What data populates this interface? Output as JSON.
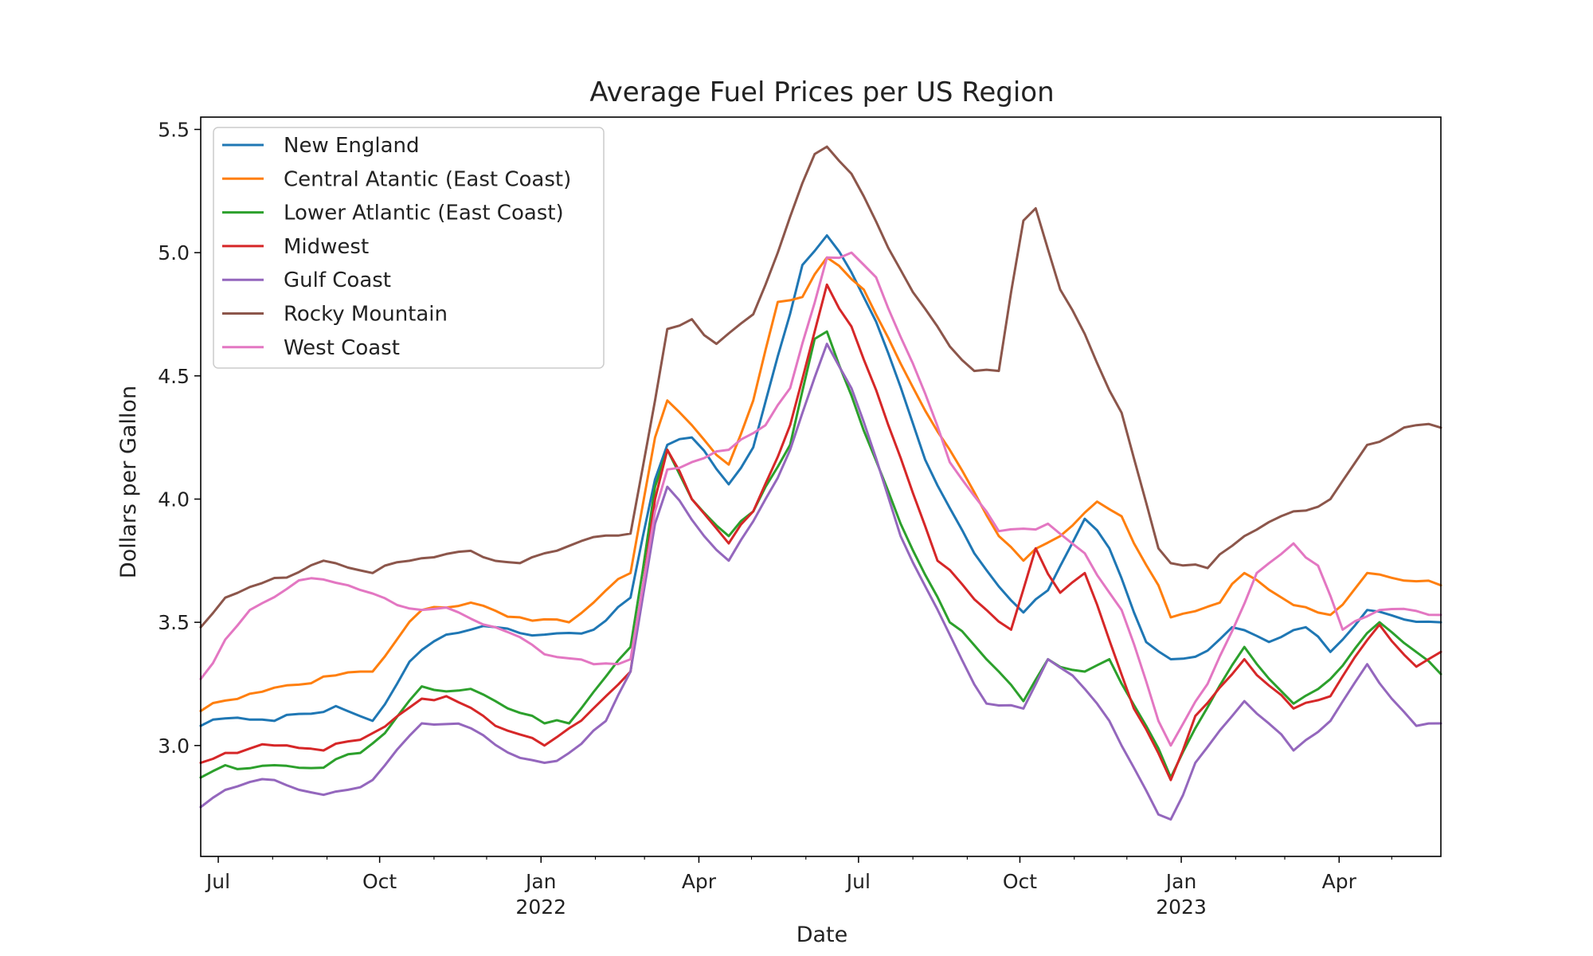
{
  "chart_data": {
    "type": "line",
    "title": "Average Fuel Prices per US Region",
    "xlabel": "Date",
    "ylabel": "Dollars per Gallon",
    "x_range": [
      "2021-06-21",
      "2023-05-29"
    ],
    "ylim": [
      2.55,
      5.55
    ],
    "yticks": [
      3.0,
      3.5,
      4.0,
      4.5,
      5.0,
      5.5
    ],
    "ytick_labels": [
      "3.0",
      "3.5",
      "4.0",
      "4.5",
      "5.0",
      "5.5"
    ],
    "xticks": [
      {
        "date": "2021-07-01",
        "label": "Jul",
        "year": ""
      },
      {
        "date": "2021-10-01",
        "label": "Oct",
        "year": ""
      },
      {
        "date": "2022-01-01",
        "label": "Jan",
        "year": "2022"
      },
      {
        "date": "2022-04-01",
        "label": "Apr",
        "year": ""
      },
      {
        "date": "2022-07-01",
        "label": "Jul",
        "year": ""
      },
      {
        "date": "2022-10-01",
        "label": "Oct",
        "year": ""
      },
      {
        "date": "2023-01-01",
        "label": "Jan",
        "year": "2023"
      },
      {
        "date": "2023-04-01",
        "label": "Apr",
        "year": ""
      }
    ],
    "legend_position": "top-left",
    "grid": false,
    "series": [
      {
        "name": "New England",
        "color": "#1f77b4",
        "points": [
          [
            "2021-06-21",
            3.08
          ],
          [
            "2021-07-05",
            3.11
          ],
          [
            "2021-08-02",
            3.1
          ],
          [
            "2021-09-06",
            3.16
          ],
          [
            "2021-09-27",
            3.1
          ],
          [
            "2021-10-18",
            3.34
          ],
          [
            "2021-11-08",
            3.45
          ],
          [
            "2021-12-06",
            3.48
          ],
          [
            "2022-01-03",
            3.45
          ],
          [
            "2022-01-31",
            3.47
          ],
          [
            "2022-02-21",
            3.6
          ],
          [
            "2022-03-07",
            4.08
          ],
          [
            "2022-03-14",
            4.22
          ],
          [
            "2022-03-28",
            4.25
          ],
          [
            "2022-04-18",
            4.06
          ],
          [
            "2022-05-02",
            4.21
          ],
          [
            "2022-05-16",
            4.58
          ],
          [
            "2022-05-30",
            4.95
          ],
          [
            "2022-06-13",
            5.07
          ],
          [
            "2022-06-27",
            4.92
          ],
          [
            "2022-07-11",
            4.72
          ],
          [
            "2022-08-08",
            4.16
          ],
          [
            "2022-09-05",
            3.78
          ],
          [
            "2022-10-03",
            3.54
          ],
          [
            "2022-10-17",
            3.63
          ],
          [
            "2022-11-07",
            3.92
          ],
          [
            "2022-11-21",
            3.8
          ],
          [
            "2022-12-12",
            3.42
          ],
          [
            "2022-12-26",
            3.35
          ],
          [
            "2023-01-09",
            3.36
          ],
          [
            "2023-01-30",
            3.48
          ],
          [
            "2023-02-20",
            3.42
          ],
          [
            "2023-03-13",
            3.48
          ],
          [
            "2023-03-27",
            3.38
          ],
          [
            "2023-04-17",
            3.55
          ],
          [
            "2023-05-29",
            3.5
          ]
        ]
      },
      {
        "name": "Central Atantic (East Coast)",
        "color": "#ff7f0e",
        "points": [
          [
            "2021-06-21",
            3.14
          ],
          [
            "2021-07-19",
            3.21
          ],
          [
            "2021-08-30",
            3.28
          ],
          [
            "2021-09-27",
            3.3
          ],
          [
            "2021-10-25",
            3.55
          ],
          [
            "2021-11-22",
            3.58
          ],
          [
            "2021-12-20",
            3.52
          ],
          [
            "2022-01-17",
            3.5
          ],
          [
            "2022-02-21",
            3.7
          ],
          [
            "2022-03-07",
            4.25
          ],
          [
            "2022-03-14",
            4.4
          ],
          [
            "2022-03-28",
            4.3
          ],
          [
            "2022-04-18",
            4.14
          ],
          [
            "2022-05-02",
            4.4
          ],
          [
            "2022-05-16",
            4.8
          ],
          [
            "2022-05-30",
            4.82
          ],
          [
            "2022-06-13",
            4.98
          ],
          [
            "2022-07-04",
            4.85
          ],
          [
            "2022-07-25",
            4.55
          ],
          [
            "2022-08-22",
            4.2
          ],
          [
            "2022-09-19",
            3.85
          ],
          [
            "2022-10-03",
            3.75
          ],
          [
            "2022-10-24",
            3.85
          ],
          [
            "2022-11-14",
            3.99
          ],
          [
            "2022-11-28",
            3.93
          ],
          [
            "2022-12-19",
            3.65
          ],
          [
            "2022-12-26",
            3.52
          ],
          [
            "2023-01-23",
            3.58
          ],
          [
            "2023-02-06",
            3.7
          ],
          [
            "2023-03-06",
            3.57
          ],
          [
            "2023-03-27",
            3.53
          ],
          [
            "2023-04-17",
            3.7
          ],
          [
            "2023-05-29",
            3.65
          ]
        ]
      },
      {
        "name": "Lower Atlantic (East Coast)",
        "color": "#2ca02c",
        "points": [
          [
            "2021-06-21",
            2.87
          ],
          [
            "2021-07-05",
            2.92
          ],
          [
            "2021-08-02",
            2.92
          ],
          [
            "2021-08-30",
            2.91
          ],
          [
            "2021-09-20",
            2.97
          ],
          [
            "2021-10-04",
            3.05
          ],
          [
            "2021-10-25",
            3.24
          ],
          [
            "2021-11-22",
            3.23
          ],
          [
            "2021-12-06",
            3.18
          ],
          [
            "2022-01-03",
            3.09
          ],
          [
            "2022-01-17",
            3.09
          ],
          [
            "2022-02-07",
            3.28
          ],
          [
            "2022-02-21",
            3.4
          ],
          [
            "2022-03-07",
            4.05
          ],
          [
            "2022-03-14",
            4.2
          ],
          [
            "2022-03-28",
            4.0
          ],
          [
            "2022-04-18",
            3.85
          ],
          [
            "2022-05-02",
            3.95
          ],
          [
            "2022-05-23",
            4.22
          ],
          [
            "2022-06-06",
            4.65
          ],
          [
            "2022-06-13",
            4.68
          ],
          [
            "2022-06-27",
            4.42
          ],
          [
            "2022-07-25",
            3.9
          ],
          [
            "2022-08-22",
            3.5
          ],
          [
            "2022-09-19",
            3.3
          ],
          [
            "2022-10-03",
            3.18
          ],
          [
            "2022-10-17",
            3.35
          ],
          [
            "2022-11-07",
            3.3
          ],
          [
            "2022-11-21",
            3.35
          ],
          [
            "2022-12-12",
            3.08
          ],
          [
            "2022-12-26",
            2.87
          ],
          [
            "2023-01-09",
            3.07
          ],
          [
            "2023-02-06",
            3.4
          ],
          [
            "2023-03-06",
            3.17
          ],
          [
            "2023-03-27",
            3.27
          ],
          [
            "2023-04-24",
            3.5
          ],
          [
            "2023-05-29",
            3.29
          ]
        ]
      },
      {
        "name": "Midwest",
        "color": "#d62728",
        "points": [
          [
            "2021-06-21",
            2.93
          ],
          [
            "2021-07-05",
            2.97
          ],
          [
            "2021-08-02",
            3.0
          ],
          [
            "2021-08-30",
            2.98
          ],
          [
            "2021-09-27",
            3.05
          ],
          [
            "2021-10-25",
            3.19
          ],
          [
            "2021-11-08",
            3.2
          ],
          [
            "2021-12-06",
            3.08
          ],
          [
            "2022-01-03",
            3.0
          ],
          [
            "2022-01-17",
            3.07
          ],
          [
            "2022-02-07",
            3.2
          ],
          [
            "2022-02-21",
            3.3
          ],
          [
            "2022-03-07",
            4.0
          ],
          [
            "2022-03-14",
            4.2
          ],
          [
            "2022-03-28",
            4.0
          ],
          [
            "2022-04-18",
            3.82
          ],
          [
            "2022-05-02",
            3.95
          ],
          [
            "2022-05-23",
            4.3
          ],
          [
            "2022-06-13",
            4.87
          ],
          [
            "2022-06-27",
            4.7
          ],
          [
            "2022-07-18",
            4.3
          ],
          [
            "2022-08-15",
            3.75
          ],
          [
            "2022-09-12",
            3.55
          ],
          [
            "2022-09-26",
            3.47
          ],
          [
            "2022-10-10",
            3.8
          ],
          [
            "2022-10-24",
            3.62
          ],
          [
            "2022-11-07",
            3.7
          ],
          [
            "2022-12-05",
            3.15
          ],
          [
            "2022-12-26",
            2.86
          ],
          [
            "2023-01-09",
            3.12
          ],
          [
            "2023-02-06",
            3.35
          ],
          [
            "2023-03-06",
            3.15
          ],
          [
            "2023-03-27",
            3.2
          ],
          [
            "2023-04-24",
            3.49
          ],
          [
            "2023-05-15",
            3.32
          ],
          [
            "2023-05-29",
            3.38
          ]
        ]
      },
      {
        "name": "Gulf Coast",
        "color": "#9467bd",
        "points": [
          [
            "2021-06-21",
            2.75
          ],
          [
            "2021-07-05",
            2.82
          ],
          [
            "2021-08-02",
            2.86
          ],
          [
            "2021-08-30",
            2.8
          ],
          [
            "2021-09-27",
            2.86
          ],
          [
            "2021-10-25",
            3.09
          ],
          [
            "2021-11-22",
            3.07
          ],
          [
            "2021-12-20",
            2.95
          ],
          [
            "2022-01-03",
            2.93
          ],
          [
            "2022-01-17",
            2.97
          ],
          [
            "2022-02-07",
            3.1
          ],
          [
            "2022-02-21",
            3.3
          ],
          [
            "2022-03-07",
            3.9
          ],
          [
            "2022-03-14",
            4.05
          ],
          [
            "2022-04-04",
            3.85
          ],
          [
            "2022-04-18",
            3.75
          ],
          [
            "2022-05-09",
            4.0
          ],
          [
            "2022-05-23",
            4.2
          ],
          [
            "2022-06-13",
            4.63
          ],
          [
            "2022-06-27",
            4.45
          ],
          [
            "2022-07-25",
            3.85
          ],
          [
            "2022-08-22",
            3.45
          ],
          [
            "2022-09-12",
            3.17
          ],
          [
            "2022-10-03",
            3.15
          ],
          [
            "2022-10-17",
            3.35
          ],
          [
            "2022-11-07",
            3.23
          ],
          [
            "2022-11-21",
            3.1
          ],
          [
            "2022-12-19",
            2.72
          ],
          [
            "2022-12-26",
            2.7
          ],
          [
            "2023-01-09",
            2.93
          ],
          [
            "2023-02-06",
            3.18
          ],
          [
            "2023-03-06",
            2.98
          ],
          [
            "2023-03-27",
            3.1
          ],
          [
            "2023-04-17",
            3.33
          ],
          [
            "2023-05-15",
            3.08
          ],
          [
            "2023-05-29",
            3.09
          ]
        ]
      },
      {
        "name": "Rocky Mountain",
        "color": "#8c564b",
        "points": [
          [
            "2021-06-21",
            3.48
          ],
          [
            "2021-07-05",
            3.6
          ],
          [
            "2021-08-02",
            3.68
          ],
          [
            "2021-08-30",
            3.75
          ],
          [
            "2021-09-27",
            3.7
          ],
          [
            "2021-10-25",
            3.76
          ],
          [
            "2021-11-22",
            3.79
          ],
          [
            "2021-12-20",
            3.74
          ],
          [
            "2022-01-03",
            3.78
          ],
          [
            "2022-01-17",
            3.81
          ],
          [
            "2022-02-21",
            3.86
          ],
          [
            "2022-03-07",
            4.4
          ],
          [
            "2022-03-14",
            4.69
          ],
          [
            "2022-03-28",
            4.73
          ],
          [
            "2022-04-11",
            4.63
          ],
          [
            "2022-05-02",
            4.75
          ],
          [
            "2022-05-16",
            5.0
          ],
          [
            "2022-06-06",
            5.4
          ],
          [
            "2022-06-13",
            5.43
          ],
          [
            "2022-06-27",
            5.32
          ],
          [
            "2022-07-25",
            4.93
          ],
          [
            "2022-08-22",
            4.62
          ],
          [
            "2022-09-05",
            4.52
          ],
          [
            "2022-09-19",
            4.52
          ],
          [
            "2022-10-03",
            5.13
          ],
          [
            "2022-10-10",
            5.18
          ],
          [
            "2022-10-24",
            4.85
          ],
          [
            "2022-11-07",
            4.67
          ],
          [
            "2022-11-28",
            4.35
          ],
          [
            "2022-12-19",
            3.8
          ],
          [
            "2022-12-26",
            3.74
          ],
          [
            "2023-01-16",
            3.72
          ],
          [
            "2023-02-06",
            3.85
          ],
          [
            "2023-03-06",
            3.95
          ],
          [
            "2023-03-27",
            4.0
          ],
          [
            "2023-04-17",
            4.22
          ],
          [
            "2023-05-15",
            4.3
          ],
          [
            "2023-05-29",
            4.29
          ]
        ]
      },
      {
        "name": "West Coast",
        "color": "#e377c2",
        "points": [
          [
            "2021-06-21",
            3.27
          ],
          [
            "2021-07-05",
            3.43
          ],
          [
            "2021-07-19",
            3.55
          ],
          [
            "2021-08-16",
            3.67
          ],
          [
            "2021-09-13",
            3.65
          ],
          [
            "2021-10-11",
            3.57
          ],
          [
            "2021-11-08",
            3.56
          ],
          [
            "2021-12-06",
            3.48
          ],
          [
            "2022-01-03",
            3.37
          ],
          [
            "2022-01-31",
            3.33
          ],
          [
            "2022-02-21",
            3.35
          ],
          [
            "2022-03-07",
            3.95
          ],
          [
            "2022-03-14",
            4.12
          ],
          [
            "2022-03-28",
            4.15
          ],
          [
            "2022-04-18",
            4.2
          ],
          [
            "2022-05-09",
            4.3
          ],
          [
            "2022-05-23",
            4.45
          ],
          [
            "2022-06-13",
            4.98
          ],
          [
            "2022-06-27",
            5.0
          ],
          [
            "2022-07-11",
            4.9
          ],
          [
            "2022-08-01",
            4.55
          ],
          [
            "2022-08-22",
            4.15
          ],
          [
            "2022-09-19",
            3.87
          ],
          [
            "2022-10-03",
            3.88
          ],
          [
            "2022-10-17",
            3.9
          ],
          [
            "2022-11-07",
            3.78
          ],
          [
            "2022-11-28",
            3.55
          ],
          [
            "2022-12-19",
            3.1
          ],
          [
            "2022-12-26",
            3.0
          ],
          [
            "2023-01-16",
            3.25
          ],
          [
            "2023-02-13",
            3.7
          ],
          [
            "2023-03-06",
            3.82
          ],
          [
            "2023-03-20",
            3.73
          ],
          [
            "2023-04-03",
            3.47
          ],
          [
            "2023-04-24",
            3.55
          ],
          [
            "2023-05-29",
            3.53
          ]
        ]
      }
    ]
  }
}
